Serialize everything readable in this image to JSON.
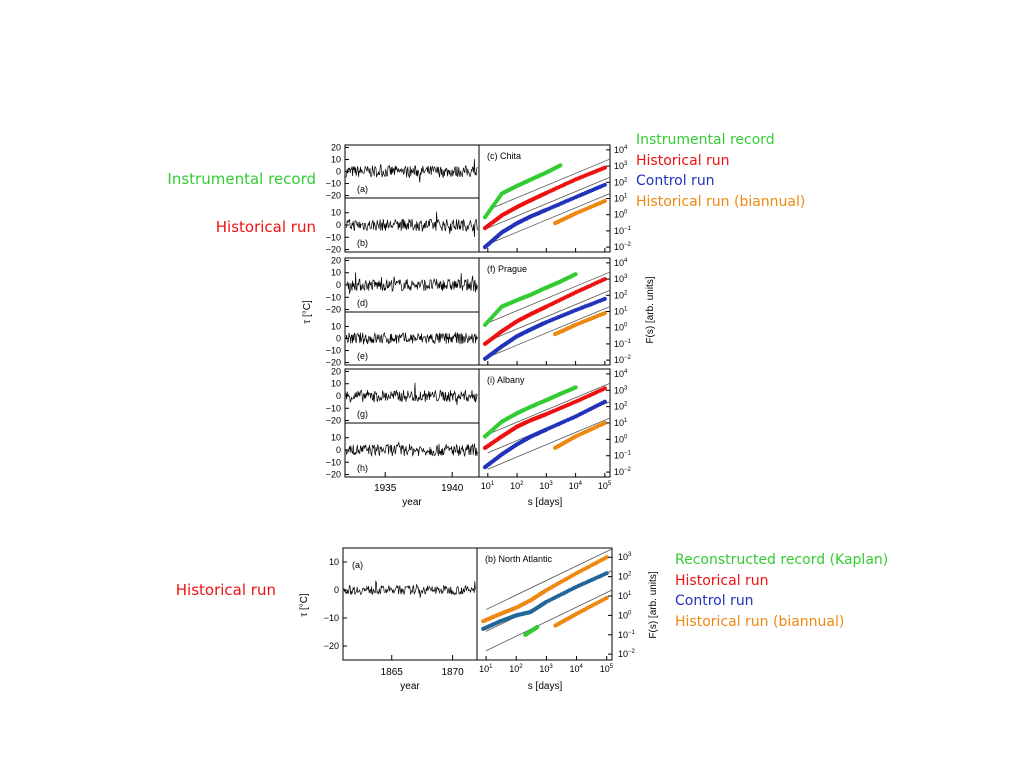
{
  "side_labels": {
    "instrumental": {
      "text": "Instrumental record",
      "color": "#33cc33"
    },
    "historical_top": {
      "text": "Historical run",
      "color": "#ee1111"
    },
    "historical_bottom": {
      "text": "Historical run",
      "color": "#ee1111"
    }
  },
  "legend_top": [
    {
      "text": "Instrumental record",
      "color": "#33cc33"
    },
    {
      "text": "Historical run",
      "color": "#ee1111"
    },
    {
      "text": "Control run",
      "color": "#2233bb"
    },
    {
      "text": "Historical run (biannual)",
      "color": "#ee8811"
    }
  ],
  "legend_bottom": [
    {
      "text": "Reconstructed record (Kaplan)",
      "color": "#33cc33"
    },
    {
      "text": "Historical run",
      "color": "#ee1111"
    },
    {
      "text": "Control run",
      "color": "#2233bb"
    },
    {
      "text": "Historical run (biannual)",
      "color": "#ee8811"
    }
  ],
  "top_figure": {
    "ts_ylabel": "τ [°C]",
    "ts_xlabel": "year",
    "ts_xticks": [
      "1935",
      "1940"
    ],
    "ts_xtick_values": [
      1935,
      1940
    ],
    "ts_xlim": [
      1932,
      1942
    ],
    "ts_yticks": [
      "20",
      "10",
      "0",
      "−10",
      "−20"
    ],
    "ts_yticks_lower": [
      "10",
      "0",
      "−10",
      "−20"
    ],
    "ts_ylim": [
      -20,
      20
    ],
    "fs_ylabel": "F(s)  [arb. units]",
    "fs_xlabel": "s [days]",
    "fs_xticks": [
      "10",
      "10",
      "10",
      "10",
      "10"
    ],
    "fs_xtick_exps": [
      "1",
      "2",
      "3",
      "4",
      "5"
    ],
    "fs_yticks": [
      "10",
      "10",
      "10",
      "10",
      "10",
      "10",
      "10"
    ],
    "fs_ytick_exps": [
      "4",
      "3",
      "2",
      "1",
      "0",
      "−1",
      "−2"
    ],
    "ts_panels": [
      "(a)",
      "(b)",
      "(d)",
      "(e)",
      "(g)",
      "(h)"
    ],
    "fs_panels": [
      "(c) Chita",
      "(f) Prague",
      "(i) Albany"
    ]
  },
  "bottom_figure": {
    "ts_panel": "(a)",
    "fs_panel": "(b) North Atlantic",
    "ts_ylabel": "τ [°C]",
    "ts_xlabel": "year",
    "ts_xticks": [
      "1865",
      "1870"
    ],
    "ts_xtick_values": [
      1865,
      1870
    ],
    "ts_xlim": [
      1861,
      1872
    ],
    "ts_yticks": [
      "10",
      "0",
      "−10",
      "−20"
    ],
    "ts_ylim": [
      -25,
      15
    ],
    "fs_ylabel": "F(s)  [arb. units]",
    "fs_xlabel": "s [days]",
    "fs_xticks": [
      "10",
      "10",
      "10",
      "10",
      "10"
    ],
    "fs_xtick_exps": [
      "1",
      "2",
      "3",
      "4",
      "5"
    ],
    "fs_yticks": [
      "10",
      "10",
      "10",
      "10",
      "10",
      "10"
    ],
    "fs_ytick_exps": [
      "3",
      "2",
      "1",
      "0",
      "−1",
      "−2"
    ]
  },
  "chart_data": [
    {
      "type": "line",
      "title": "(c) Chita",
      "xlabel": "s [days]",
      "ylabel": "F(s)  [arb. units]",
      "xscale": "log",
      "yscale": "log",
      "xlim": [
        5,
        150000
      ],
      "ylim": [
        0.005,
        20000
      ],
      "series": [
        {
          "name": "Instrumental record",
          "color": "#33cc33",
          "x": [
            8,
            30,
            100,
            300,
            1000,
            3000
          ],
          "y": [
            0.7,
            20,
            60,
            150,
            400,
            1100
          ]
        },
        {
          "name": "Historical run",
          "color": "#ee1111",
          "x": [
            8,
            30,
            100,
            300,
            1000,
            10000,
            100000
          ],
          "y": [
            0.15,
            0.9,
            3,
            8,
            22,
            150,
            800
          ]
        },
        {
          "name": "Control run",
          "color": "#2233bb",
          "x": [
            8,
            30,
            100,
            300,
            1000,
            10000,
            100000
          ],
          "y": [
            0.01,
            0.08,
            0.3,
            0.8,
            2,
            12,
            70
          ]
        },
        {
          "name": "Historical run (biannual)",
          "color": "#ee8811",
          "x": [
            2000,
            10000,
            100000
          ],
          "y": [
            0.3,
            1.2,
            7
          ]
        }
      ]
    },
    {
      "type": "line",
      "title": "(f) Prague",
      "xlabel": "s [days]",
      "ylabel": "F(s)  [arb. units]",
      "xscale": "log",
      "yscale": "log",
      "xlim": [
        5,
        150000
      ],
      "ylim": [
        0.005,
        20000
      ],
      "series": [
        {
          "name": "Instrumental record",
          "color": "#33cc33",
          "x": [
            8,
            30,
            100,
            300,
            1000,
            3000,
            10000
          ],
          "y": [
            1.5,
            20,
            50,
            110,
            300,
            700,
            2000
          ]
        },
        {
          "name": "Historical run",
          "color": "#ee1111",
          "x": [
            8,
            30,
            100,
            300,
            1000,
            10000,
            100000
          ],
          "y": [
            0.1,
            0.6,
            2.5,
            7,
            20,
            150,
            1000
          ]
        },
        {
          "name": "Control run",
          "color": "#2233bb",
          "x": [
            8,
            30,
            100,
            300,
            1000,
            10000,
            100000
          ],
          "y": [
            0.012,
            0.07,
            0.3,
            0.8,
            2.2,
            12,
            60
          ]
        },
        {
          "name": "Historical run (biannual)",
          "color": "#ee8811",
          "x": [
            2000,
            10000,
            100000
          ],
          "y": [
            0.4,
            1.5,
            8
          ]
        }
      ]
    },
    {
      "type": "line",
      "title": "(i) Albany",
      "xlabel": "s [days]",
      "ylabel": "F(s)  [arb. units]",
      "xscale": "log",
      "yscale": "log",
      "xlim": [
        5,
        150000
      ],
      "ylim": [
        0.005,
        20000
      ],
      "series": [
        {
          "name": "Instrumental record",
          "color": "#33cc33",
          "x": [
            8,
            30,
            100,
            300,
            1000,
            3000,
            10000
          ],
          "y": [
            1.5,
            12,
            40,
            100,
            250,
            600,
            1500
          ]
        },
        {
          "name": "Historical run",
          "color": "#ee1111",
          "x": [
            8,
            30,
            100,
            300,
            1000,
            10000,
            100000
          ],
          "y": [
            0.3,
            1.5,
            6,
            15,
            35,
            200,
            1300
          ]
        },
        {
          "name": "Control run",
          "color": "#2233bb",
          "x": [
            8,
            30,
            100,
            300,
            1000,
            10000,
            100000
          ],
          "y": [
            0.02,
            0.12,
            0.5,
            1.5,
            4,
            25,
            200
          ]
        },
        {
          "name": "Historical run (biannual)",
          "color": "#ee8811",
          "x": [
            2000,
            10000,
            100000
          ],
          "y": [
            0.3,
            1.5,
            10
          ]
        }
      ]
    },
    {
      "type": "line",
      "title": "(b) North Atlantic",
      "xlabel": "s [days]",
      "ylabel": "F(s)  [arb. units]",
      "xscale": "log",
      "yscale": "log",
      "xlim": [
        5,
        150000
      ],
      "ylim": [
        0.005,
        3000
      ],
      "series": [
        {
          "name": "Reconstructed record (Kaplan)",
          "color": "#33cc33",
          "x": [
            200,
            300,
            500
          ],
          "y": [
            0.1,
            0.15,
            0.25
          ]
        },
        {
          "name": "Historical run",
          "color": "#ee8811",
          "x": [
            8,
            30,
            100,
            300,
            1000,
            10000,
            100000
          ],
          "y": [
            0.5,
            1.2,
            2.5,
            6,
            20,
            150,
            1000
          ]
        },
        {
          "name": "Control run",
          "color": "#226699",
          "x": [
            8,
            30,
            100,
            300,
            1000,
            10000,
            100000
          ],
          "y": [
            0.2,
            0.5,
            1,
            1.5,
            5,
            30,
            150
          ]
        },
        {
          "name": "Historical run (biannual)",
          "color": "#ee8811",
          "x": [
            2000,
            10000,
            100000
          ],
          "y": [
            0.3,
            1.2,
            8
          ]
        }
      ]
    }
  ]
}
